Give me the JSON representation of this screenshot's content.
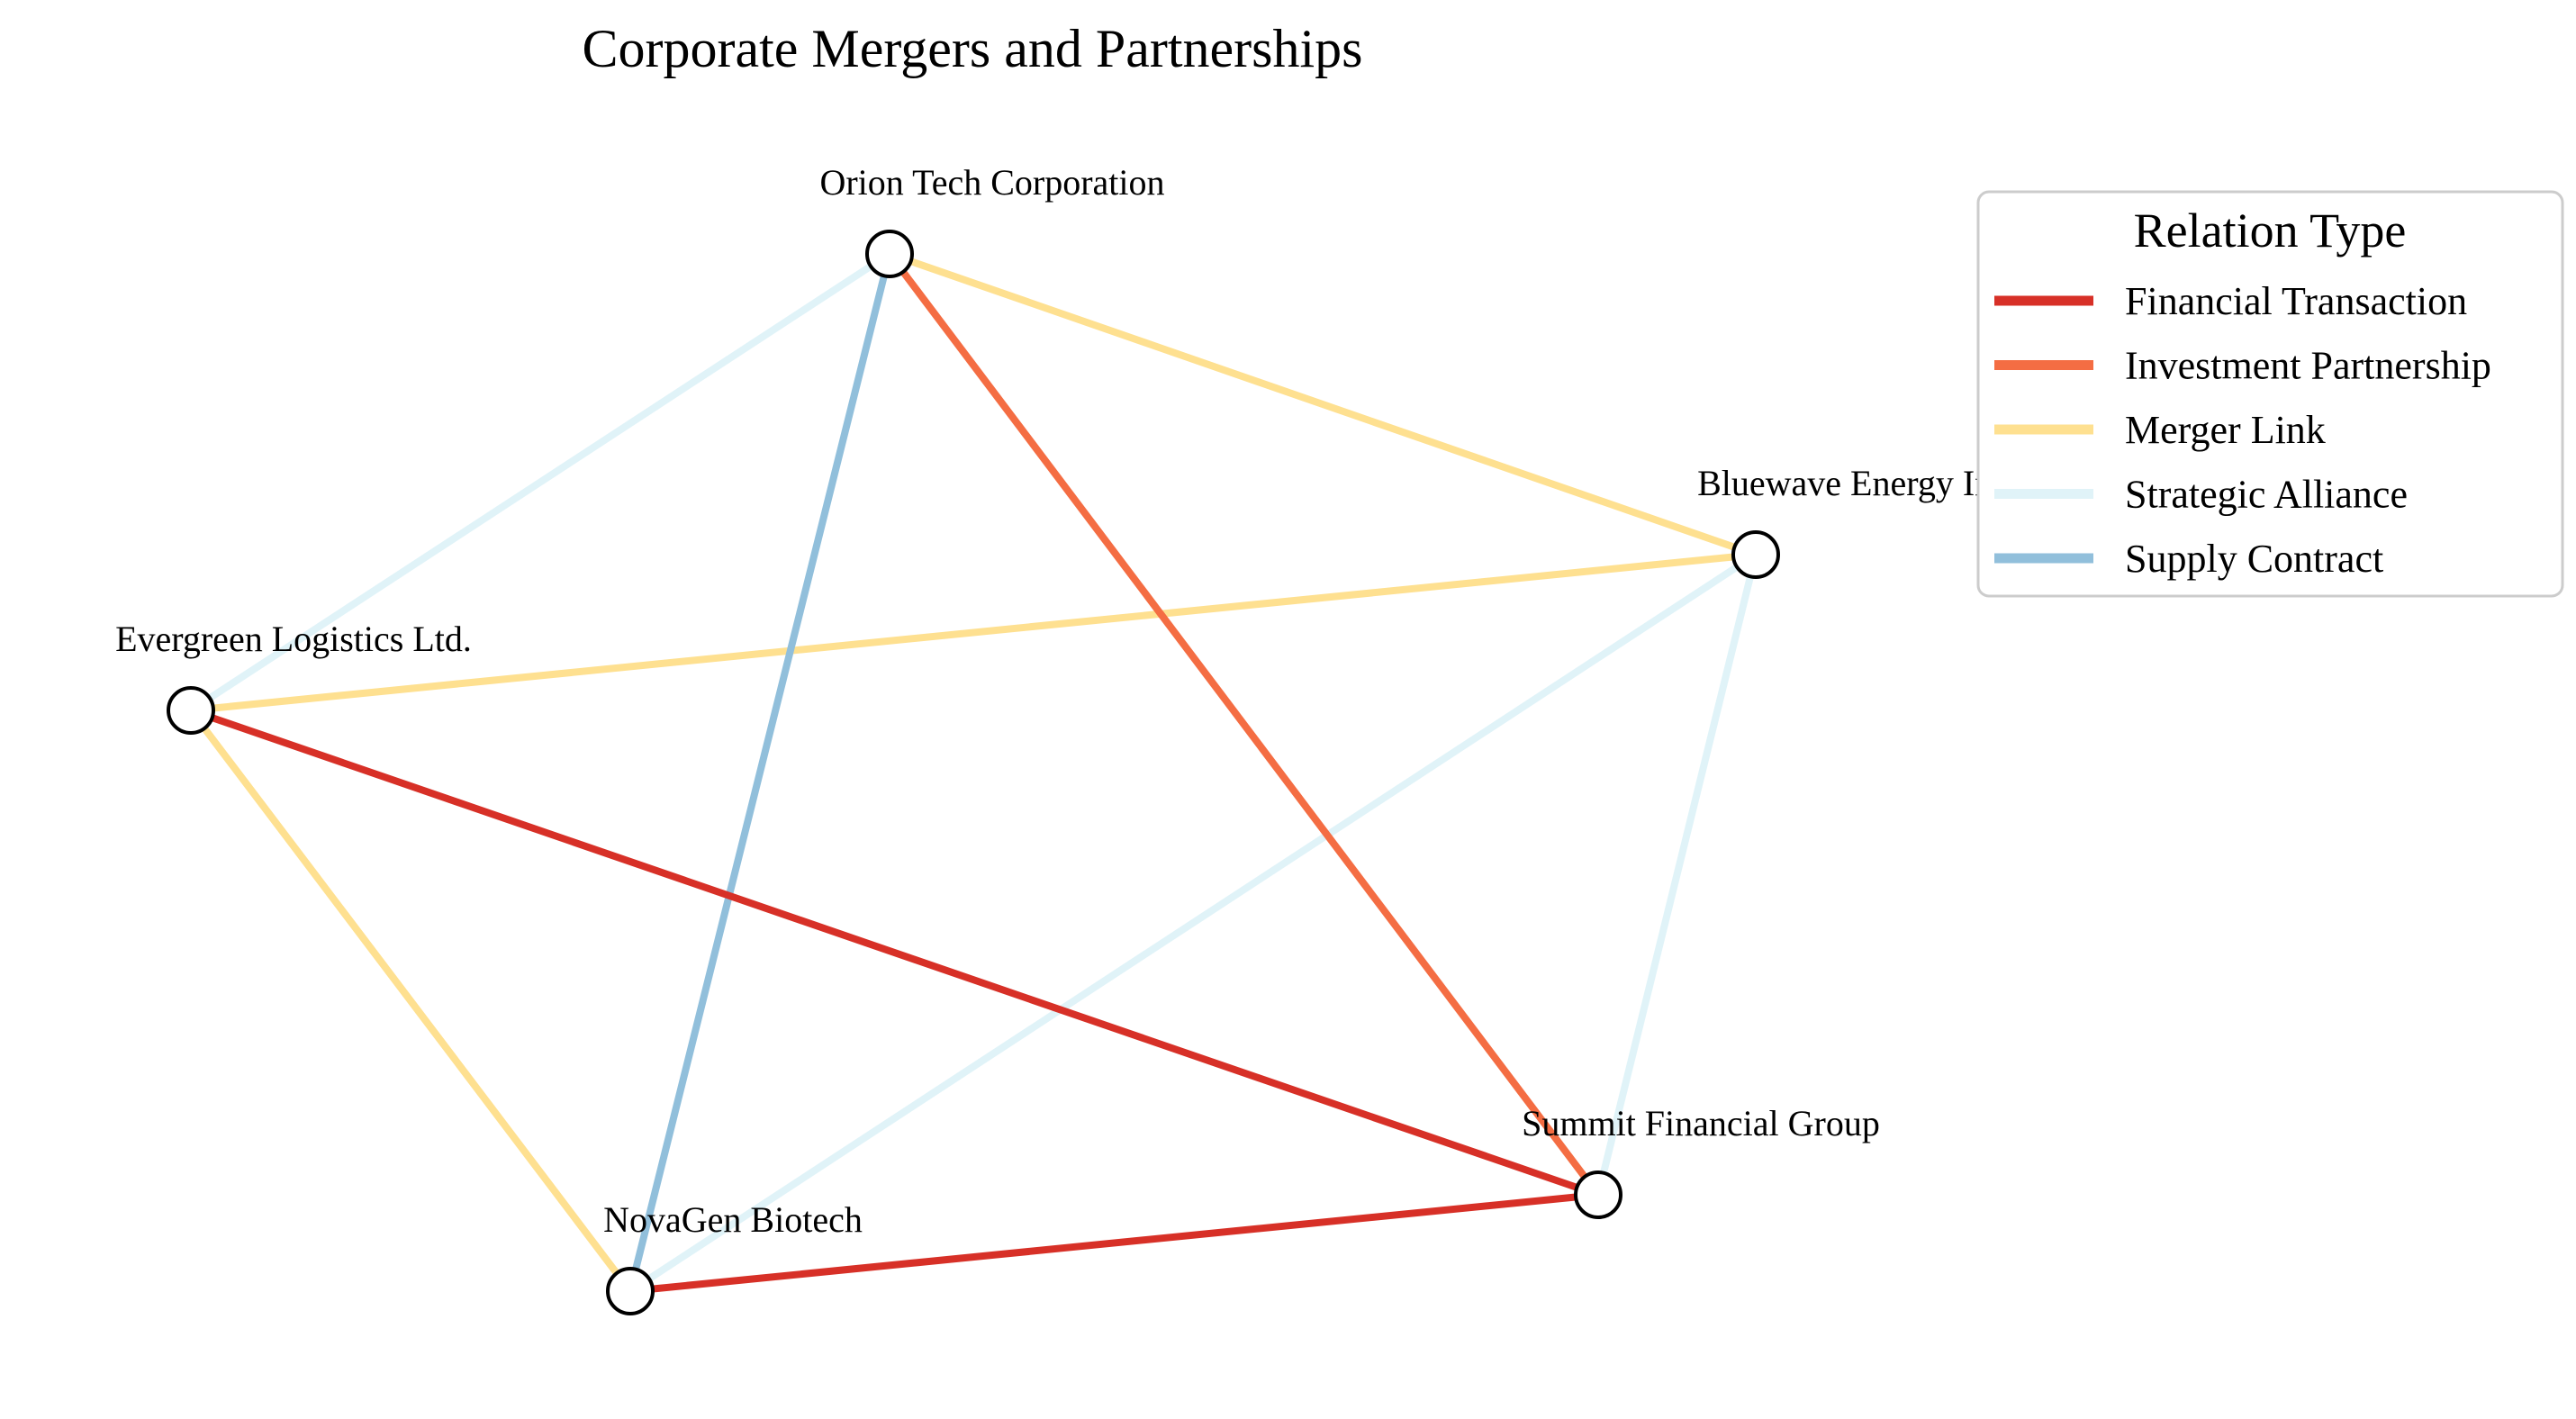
{
  "title": "Corporate Mergers and Partnerships",
  "legend": {
    "title": "Relation Type",
    "placement": "top-right",
    "items": [
      {
        "label": "Financial Transaction",
        "color": "#d73027"
      },
      {
        "label": "Investment Partnership",
        "color": "#f46d43"
      },
      {
        "label": "Merger Link",
        "color": "#fee090"
      },
      {
        "label": "Strategic Alliance",
        "color": "#e0f3f8"
      },
      {
        "label": "Supply Contract",
        "color": "#91bfdb"
      }
    ]
  },
  "nodes": [
    {
      "id": "orion",
      "label": "Orion Tech Corporation"
    },
    {
      "id": "bluewave",
      "label": "Bluewave Energy Inc."
    },
    {
      "id": "evergreen",
      "label": "Evergreen Logistics Ltd."
    },
    {
      "id": "summit",
      "label": "Summit Financial Group"
    },
    {
      "id": "novagen",
      "label": "NovaGen Biotech"
    }
  ],
  "edges": [
    {
      "source": "orion",
      "target": "evergreen",
      "relation": "Strategic Alliance"
    },
    {
      "source": "bluewave",
      "target": "novagen",
      "relation": "Strategic Alliance"
    },
    {
      "source": "bluewave",
      "target": "summit",
      "relation": "Strategic Alliance"
    },
    {
      "source": "orion",
      "target": "bluewave",
      "relation": "Merger Link"
    },
    {
      "source": "evergreen",
      "target": "bluewave",
      "relation": "Merger Link"
    },
    {
      "source": "evergreen",
      "target": "novagen",
      "relation": "Merger Link"
    },
    {
      "source": "orion",
      "target": "summit",
      "relation": "Investment Partnership"
    },
    {
      "source": "orion",
      "target": "novagen",
      "relation": "Supply Contract"
    },
    {
      "source": "evergreen",
      "target": "summit",
      "relation": "Financial Transaction"
    },
    {
      "source": "novagen",
      "target": "summit",
      "relation": "Financial Transaction"
    }
  ]
}
